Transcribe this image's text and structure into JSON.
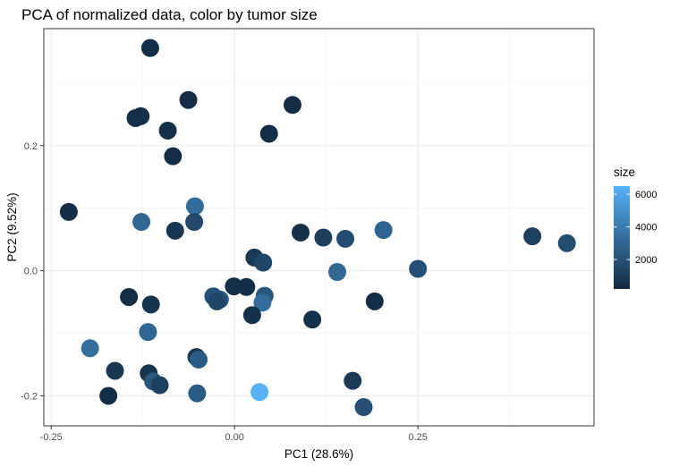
{
  "chart_data": {
    "type": "scatter",
    "title": "PCA of normalized data, color by tumor size",
    "xlabel": "PC1 (28.6%)",
    "ylabel": "PC2 (9.52%)",
    "xlim": [
      -0.26,
      0.49
    ],
    "ylim": [
      -0.248,
      0.387
    ],
    "x_ticks": [
      -0.25,
      0.0,
      0.25
    ],
    "x_tick_labels": [
      "-0.25",
      "0.00",
      "0.25"
    ],
    "y_ticks": [
      -0.2,
      0.0,
      0.2
    ],
    "y_tick_labels": [
      "-0.2",
      "0.0",
      "0.2"
    ],
    "grid": true,
    "legend": {
      "title": "size",
      "position": "right",
      "type": "colorbar",
      "range": [
        200,
        6500
      ],
      "ticks": [
        2000,
        4000,
        6000
      ],
      "tick_labels": [
        "2000",
        "4000",
        "6000"
      ],
      "color_low": "#132b43",
      "color_high": "#56b1f7"
    },
    "points": [
      {
        "x": -0.115,
        "y": 0.356,
        "size": 300
      },
      {
        "x": -0.063,
        "y": 0.273,
        "size": 250
      },
      {
        "x": 0.079,
        "y": 0.265,
        "size": 250
      },
      {
        "x": -0.128,
        "y": 0.247,
        "size": 400
      },
      {
        "x": -0.135,
        "y": 0.244,
        "size": 450
      },
      {
        "x": -0.091,
        "y": 0.224,
        "size": 400
      },
      {
        "x": 0.047,
        "y": 0.219,
        "size": 300
      },
      {
        "x": -0.084,
        "y": 0.183,
        "size": 300
      },
      {
        "x": -0.054,
        "y": 0.103,
        "size": 3200
      },
      {
        "x": -0.226,
        "y": 0.094,
        "size": 350
      },
      {
        "x": -0.127,
        "y": 0.078,
        "size": 3000
      },
      {
        "x": -0.055,
        "y": 0.078,
        "size": 1600
      },
      {
        "x": -0.081,
        "y": 0.064,
        "size": 700
      },
      {
        "x": 0.09,
        "y": 0.061,
        "size": 500
      },
      {
        "x": 0.121,
        "y": 0.053,
        "size": 1100
      },
      {
        "x": 0.151,
        "y": 0.051,
        "size": 1800
      },
      {
        "x": 0.203,
        "y": 0.065,
        "size": 2900
      },
      {
        "x": 0.406,
        "y": 0.055,
        "size": 1200
      },
      {
        "x": 0.453,
        "y": 0.044,
        "size": 1800
      },
      {
        "x": 0.027,
        "y": 0.021,
        "size": 800
      },
      {
        "x": 0.039,
        "y": 0.013,
        "size": 1500
      },
      {
        "x": 0.25,
        "y": 0.003,
        "size": 1900
      },
      {
        "x": 0.14,
        "y": -0.002,
        "size": 3000
      },
      {
        "x": -0.001,
        "y": -0.025,
        "size": 400
      },
      {
        "x": 0.016,
        "y": -0.026,
        "size": 350
      },
      {
        "x": -0.029,
        "y": -0.041,
        "size": 2000
      },
      {
        "x": 0.041,
        "y": -0.04,
        "size": 2200
      },
      {
        "x": -0.144,
        "y": -0.042,
        "size": 300
      },
      {
        "x": -0.02,
        "y": -0.046,
        "size": 2200
      },
      {
        "x": -0.024,
        "y": -0.049,
        "size": 1500
      },
      {
        "x": 0.038,
        "y": -0.051,
        "size": 3300
      },
      {
        "x": 0.191,
        "y": -0.049,
        "size": 350
      },
      {
        "x": -0.114,
        "y": -0.054,
        "size": 600
      },
      {
        "x": 0.024,
        "y": -0.071,
        "size": 500
      },
      {
        "x": 0.106,
        "y": -0.078,
        "size": 500
      },
      {
        "x": -0.118,
        "y": -0.098,
        "size": 3000
      },
      {
        "x": -0.197,
        "y": -0.124,
        "size": 3400
      },
      {
        "x": -0.052,
        "y": -0.138,
        "size": 600
      },
      {
        "x": -0.049,
        "y": -0.142,
        "size": 2500
      },
      {
        "x": -0.163,
        "y": -0.16,
        "size": 800
      },
      {
        "x": -0.117,
        "y": -0.164,
        "size": 600
      },
      {
        "x": -0.111,
        "y": -0.177,
        "size": 2300
      },
      {
        "x": 0.161,
        "y": -0.176,
        "size": 900
      },
      {
        "x": -0.102,
        "y": -0.183,
        "size": 1200
      },
      {
        "x": -0.051,
        "y": -0.196,
        "size": 2500
      },
      {
        "x": 0.034,
        "y": -0.194,
        "size": 6500
      },
      {
        "x": -0.172,
        "y": -0.2,
        "size": 300
      },
      {
        "x": 0.176,
        "y": -0.218,
        "size": 1900
      }
    ]
  }
}
